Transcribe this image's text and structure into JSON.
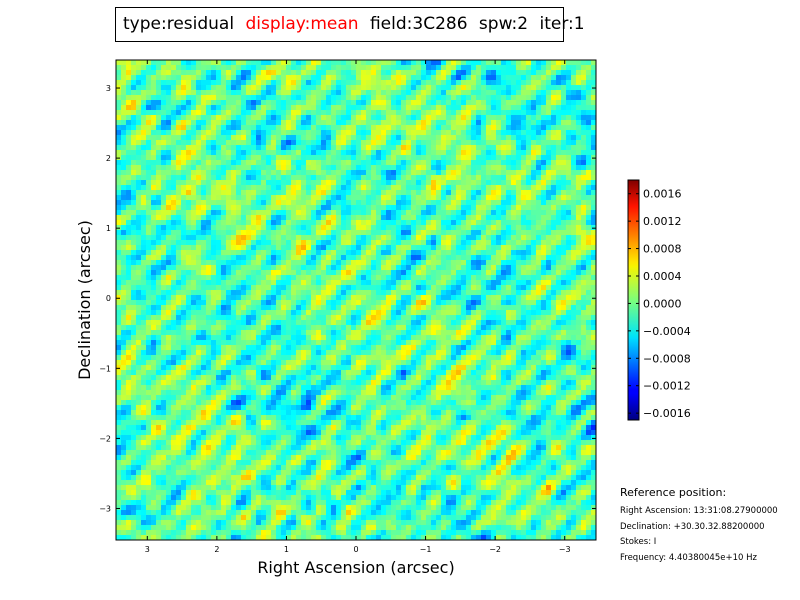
{
  "title": {
    "type_text": "type:residual",
    "display_text": "display:mean",
    "field_text": "field:3C286",
    "spw_text": "spw:2",
    "iter_text": "iter:1",
    "display_color": "#ff0000"
  },
  "reference": {
    "title": "Reference position:",
    "ra": "Right Ascension: 13:31:08.27900000",
    "dec": "Declination: +30.30.32.88200000",
    "stokes": "Stokes: I",
    "frequency": "Frequency: 4.40380045e+10 Hz"
  },
  "chart_data": {
    "type": "heatmap",
    "xlabel": "Right Ascension (arcsec)",
    "ylabel": "Declination (arcsec)",
    "xlim": [
      3.45,
      -3.45
    ],
    "ylim": [
      -3.45,
      3.4
    ],
    "x_ticks": [
      3,
      2,
      1,
      0,
      -1,
      -2,
      -3
    ],
    "x_tick_labels": [
      "3",
      "2",
      "1",
      "0",
      "−1",
      "−2",
      "−3"
    ],
    "y_ticks": [
      3,
      2,
      1,
      0,
      -1,
      -2,
      -3
    ],
    "y_tick_labels": [
      "3",
      "2",
      "1",
      "0",
      "−1",
      "−2",
      "−3"
    ],
    "colormap": "jet",
    "vmin": -0.0017,
    "vmax": 0.0018,
    "colorbar_ticks": [
      0.0016,
      0.0012,
      0.0008,
      0.0004,
      0.0,
      -0.0004,
      -0.0008,
      -0.0012,
      -0.0016
    ],
    "colorbar_tick_labels": [
      "0.0016",
      "0.0012",
      "0.0008",
      "0.0004",
      "0.0000",
      "−0.0004",
      "−0.0008",
      "−0.0012",
      "−0.0016"
    ],
    "pattern": "diagonal striped noise residual, values mostly between -0.0008 and 0.0008"
  }
}
